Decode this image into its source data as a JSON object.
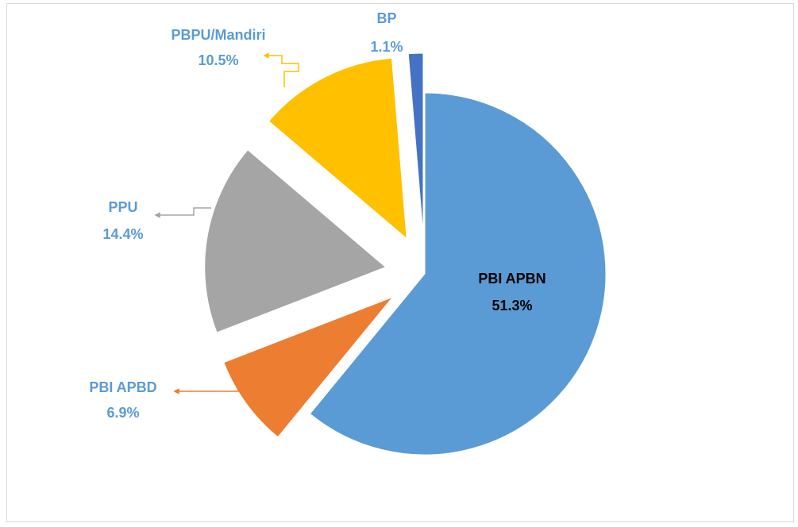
{
  "chart_data": {
    "type": "pie",
    "categories": [
      "PBI APBN",
      "PBI APBD",
      "PPU",
      "PBPU/Mandiri",
      "BP"
    ],
    "values": [
      51.3,
      6.9,
      14.4,
      10.5,
      1.1
    ],
    "value_labels": [
      "51.3%",
      "6.9%",
      "14.4%",
      "10.5%",
      "1.1%"
    ],
    "colors": [
      "#5b9bd5",
      "#ed7d31",
      "#a5a5a5",
      "#ffc000",
      "#4472c4"
    ]
  }
}
